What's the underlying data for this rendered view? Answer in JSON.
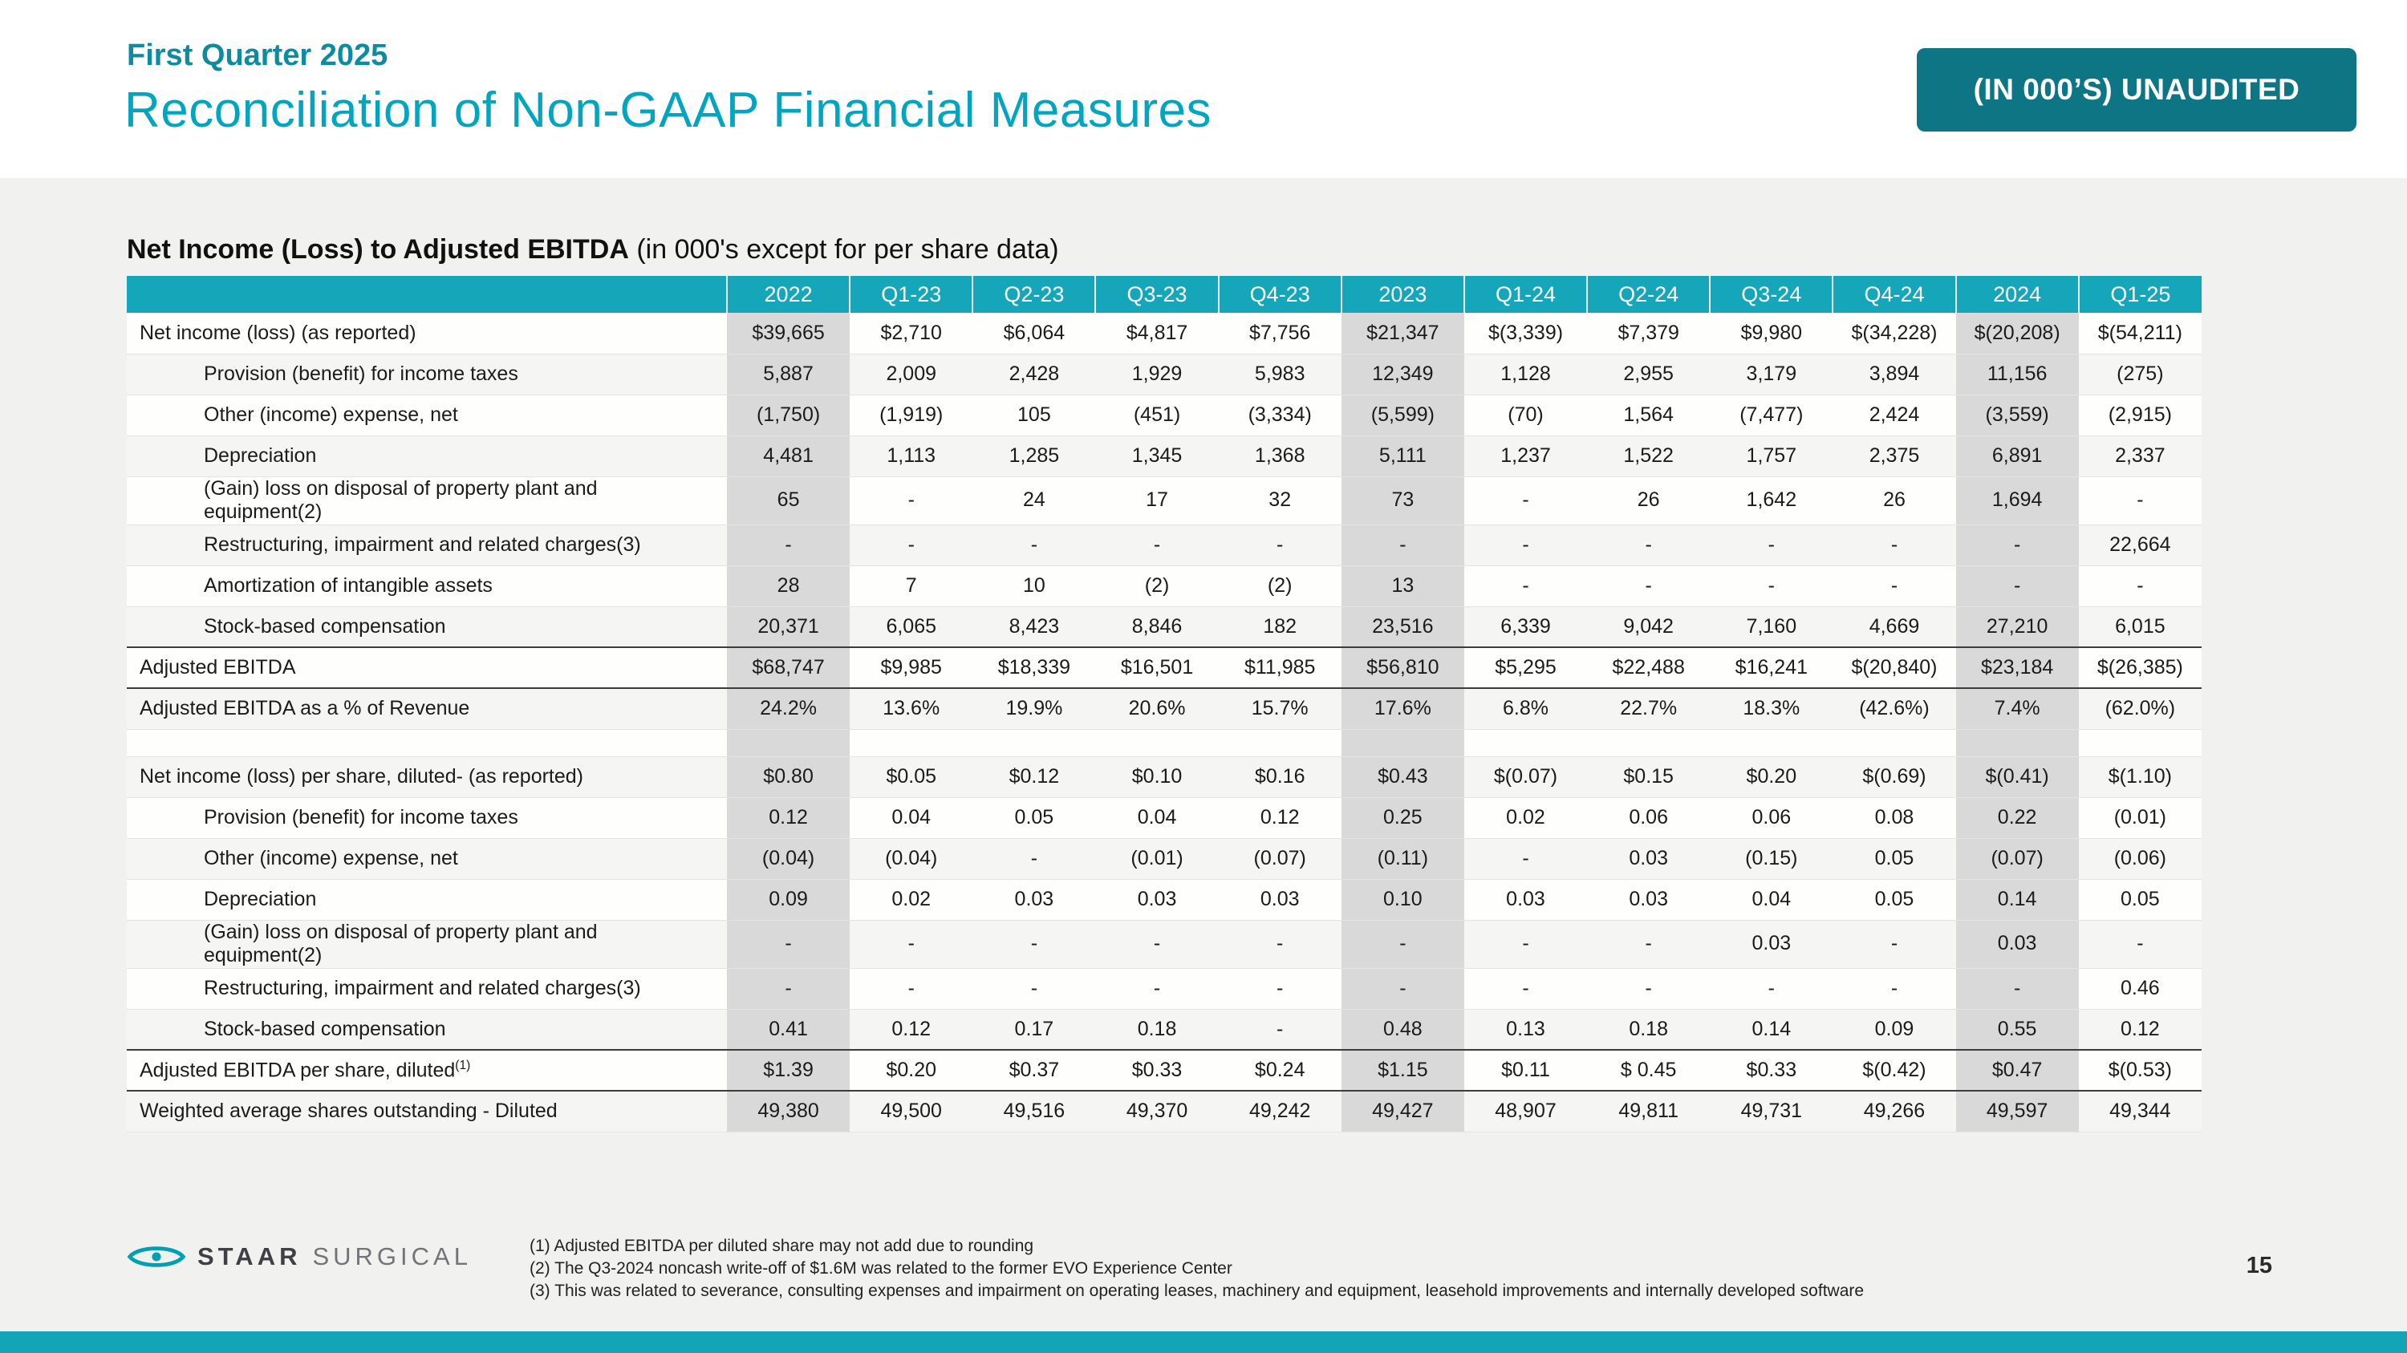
{
  "slide": {
    "eyebrow": "First Quarter 2025",
    "title": "Reconciliation of Non-GAAP Financial Measures",
    "badge": "(IN 000’S) UNAUDITED",
    "page_number": "15"
  },
  "colors": {
    "header_teal": "#16a6b9",
    "badge_teal": "#0e7585",
    "title_teal": "#00a5bf",
    "shaded_column_gray": "#d9d9d9",
    "content_band_gray": "#f1f1ef"
  },
  "table": {
    "title_bold": "Net Income (Loss) to Adjusted EBITDA",
    "title_normal": " (in 000's except for per share data)",
    "columns": [
      "2022",
      "Q1-23",
      "Q2-23",
      "Q3-23",
      "Q4-23",
      "2023",
      "Q1-24",
      "Q2-24",
      "Q3-24",
      "Q4-24",
      "2024",
      "Q1-25"
    ],
    "shaded_columns": [
      0,
      5,
      10
    ],
    "rows": [
      {
        "label": "Net income (loss) (as reported)",
        "indent": 0,
        "values": [
          "$39,665",
          "$2,710",
          "$6,064",
          "$4,817",
          "$7,756",
          "$21,347",
          "$(3,339)",
          "$7,379",
          "$9,980",
          "$(34,228)",
          "$(20,208)",
          "$(54,211)"
        ]
      },
      {
        "label": "Provision (benefit) for income taxes",
        "indent": 1,
        "values": [
          "5,887",
          "2,009",
          "2,428",
          "1,929",
          "5,983",
          "12,349",
          "1,128",
          "2,955",
          "3,179",
          "3,894",
          "11,156",
          "(275)"
        ]
      },
      {
        "label": "Other (income) expense, net",
        "indent": 1,
        "values": [
          "(1,750)",
          "(1,919)",
          "105",
          "(451)",
          "(3,334)",
          "(5,599)",
          "(70)",
          "1,564",
          "(7,477)",
          "2,424",
          "(3,559)",
          "(2,915)"
        ]
      },
      {
        "label": "Depreciation",
        "indent": 1,
        "values": [
          "4,481",
          "1,113",
          "1,285",
          "1,345",
          "1,368",
          "5,111",
          "1,237",
          "1,522",
          "1,757",
          "2,375",
          "6,891",
          "2,337"
        ]
      },
      {
        "label": "(Gain) loss on disposal of property plant and equipment(2)",
        "indent": 1,
        "values": [
          "65",
          "-",
          "24",
          "17",
          "32",
          "73",
          "-",
          "26",
          "1,642",
          "26",
          "1,694",
          "-"
        ]
      },
      {
        "label": "Restructuring, impairment and related charges(3)",
        "indent": 1,
        "values": [
          "-",
          "-",
          "-",
          "-",
          "-",
          "-",
          "-",
          "-",
          "-",
          "-",
          "-",
          "22,664"
        ]
      },
      {
        "label": "Amortization of intangible assets",
        "indent": 1,
        "values": [
          "28",
          "7",
          "10",
          "(2)",
          "(2)",
          "13",
          "-",
          "-",
          "-",
          "-",
          "-",
          "-"
        ]
      },
      {
        "label": "Stock-based compensation",
        "indent": 1,
        "values": [
          "20,371",
          "6,065",
          "8,423",
          "8,846",
          "182",
          "23,516",
          "6,339",
          "9,042",
          "7,160",
          "4,669",
          "27,210",
          "6,015"
        ]
      },
      {
        "label": "Adjusted EBITDA",
        "indent": 0,
        "rule_top": true,
        "rule_bottom": true,
        "values": [
          "$68,747",
          "$9,985",
          "$18,339",
          "$16,501",
          "$11,985",
          "$56,810",
          "$5,295",
          "$22,488",
          "$16,241",
          "$(20,840)",
          "$23,184",
          "$(26,385)"
        ]
      },
      {
        "label": "Adjusted EBITDA as a % of Revenue",
        "indent": 0,
        "values": [
          "24.2%",
          "13.6%",
          "19.9%",
          "20.6%",
          "15.7%",
          "17.6%",
          "6.8%",
          "22.7%",
          "18.3%",
          "(42.6%)",
          "7.4%",
          "(62.0%)"
        ]
      },
      {
        "label": "",
        "spacer": true,
        "values": [
          "",
          "",
          "",
          "",
          "",
          "",
          "",
          "",
          "",
          "",
          "",
          ""
        ]
      },
      {
        "label": "Net income (loss) per share, diluted- (as reported)",
        "indent": 0,
        "values": [
          "$0.80",
          "$0.05",
          "$0.12",
          "$0.10",
          "$0.16",
          "$0.43",
          "$(0.07)",
          "$0.15",
          "$0.20",
          "$(0.69)",
          "$(0.41)",
          "$(1.10)"
        ]
      },
      {
        "label": "Provision (benefit) for income taxes",
        "indent": 1,
        "values": [
          "0.12",
          "0.04",
          "0.05",
          "0.04",
          "0.12",
          "0.25",
          "0.02",
          "0.06",
          "0.06",
          "0.08",
          "0.22",
          "(0.01)"
        ]
      },
      {
        "label": "Other (income) expense, net",
        "indent": 1,
        "values": [
          "(0.04)",
          "(0.04)",
          "-",
          "(0.01)",
          "(0.07)",
          "(0.11)",
          "-",
          "0.03",
          "(0.15)",
          "0.05",
          "(0.07)",
          "(0.06)"
        ]
      },
      {
        "label": "Depreciation",
        "indent": 1,
        "values": [
          "0.09",
          "0.02",
          "0.03",
          "0.03",
          "0.03",
          "0.10",
          "0.03",
          "0.03",
          "0.04",
          "0.05",
          "0.14",
          "0.05"
        ]
      },
      {
        "label": "(Gain) loss on disposal of property plant and equipment(2)",
        "indent": 1,
        "values": [
          "-",
          "-",
          "-",
          "-",
          "-",
          "-",
          "-",
          "-",
          "0.03",
          "-",
          "0.03",
          "-"
        ]
      },
      {
        "label": "Restructuring, impairment and related charges(3)",
        "indent": 1,
        "values": [
          "-",
          "-",
          "-",
          "-",
          "-",
          "-",
          "-",
          "-",
          "-",
          "-",
          "-",
          "0.46"
        ]
      },
      {
        "label": "Stock-based compensation",
        "indent": 1,
        "values": [
          "0.41",
          "0.12",
          "0.17",
          "0.18",
          "-",
          "0.48",
          "0.13",
          "0.18",
          "0.14",
          "0.09",
          "0.55",
          "0.12"
        ]
      },
      {
        "label": "Adjusted EBITDA per share, diluted",
        "sup": "(1)",
        "indent": 0,
        "rule_top": true,
        "rule_bottom": true,
        "values": [
          "$1.39",
          "$0.20",
          "$0.37",
          "$0.33",
          "$0.24",
          "$1.15",
          "$0.11",
          "$ 0.45",
          "$0.33",
          "$(0.42)",
          "$0.47",
          "$(0.53)"
        ]
      },
      {
        "label": "Weighted average shares outstanding - Diluted",
        "indent": 0,
        "values": [
          "49,380",
          "49,500",
          "49,516",
          "49,370",
          "49,242",
          "49,427",
          "48,907",
          "49,811",
          "49,731",
          "49,266",
          "49,597",
          "49,344"
        ]
      }
    ]
  },
  "footnotes": [
    "(1)  Adjusted EBITDA per diluted share may not add due to rounding",
    "(2) The Q3-2024 noncash write-off of $1.6M was related to the former EVO Experience Center",
    "(3) This was related to severance, consulting expenses and impairment on operating leases, machinery and equipment, leasehold improvements and internally developed software"
  ],
  "logo": {
    "staar": "STAAR",
    "surgical": "SURGICAL"
  }
}
